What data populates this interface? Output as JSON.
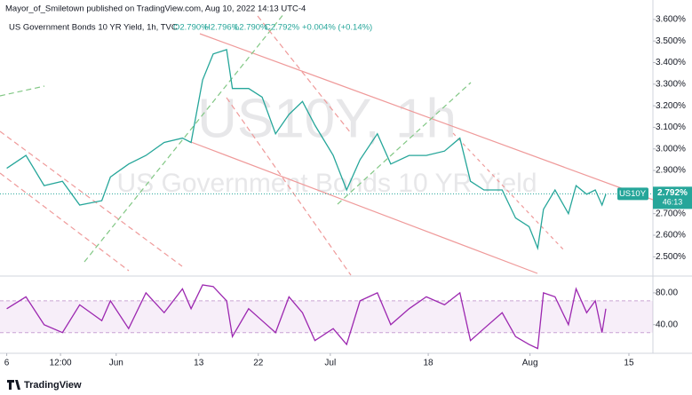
{
  "header": {
    "publisher": "Mayor_of_Smiletown published on TradingView.com, Aug 10, 2022 14:13 UTC-4",
    "symbol": "US Government Bonds 10 YR Yield, 1h, TVC",
    "open": "O2.790%",
    "high": "H2.796%",
    "low": "L2.790%",
    "close": "C2.792%",
    "change": "+0.004% (+0.14%)"
  },
  "watermark": {
    "symbol": "US10Y, 1h",
    "description": "US Government Bonds 10 YR Yield"
  },
  "price_tag": {
    "ticker": "US10Y",
    "countdown": "46:13"
  },
  "footer": {
    "brand": "TradingView"
  },
  "chart_data": [
    {
      "type": "line",
      "color": "#26a69a",
      "x": [
        6.6,
        8.6,
        10.5,
        12.4,
        14.2,
        16.5,
        17.4,
        19.3,
        21.1,
        23.0,
        24.9,
        25.8,
        27.0,
        28.1,
        29.5,
        30.1,
        31.8,
        33.2,
        34.6,
        36.0,
        37.4,
        38.7,
        40.6,
        42.0,
        43.4,
        45.2,
        46.6,
        48.5,
        50.3,
        52.2,
        53.8,
        54.9,
        56.3,
        58.2,
        59.6,
        61.0,
        61.9,
        62.5,
        63.7,
        65.1,
        65.9,
        67.0,
        67.9,
        68.6,
        69.0
      ],
      "values": [
        2.91,
        2.97,
        2.83,
        2.85,
        2.74,
        2.76,
        2.87,
        2.93,
        2.97,
        3.03,
        3.05,
        3.03,
        3.32,
        3.44,
        3.46,
        3.28,
        3.28,
        3.24,
        3.07,
        3.16,
        3.22,
        3.11,
        2.97,
        2.81,
        2.95,
        3.07,
        2.93,
        2.97,
        2.97,
        2.99,
        3.05,
        2.85,
        2.81,
        2.81,
        2.68,
        2.64,
        2.54,
        2.72,
        2.81,
        2.7,
        2.83,
        2.79,
        2.81,
        2.74,
        2.79
      ],
      "last_price": {
        "value": 2.792,
        "label": "2.792%"
      },
      "xlim": [
        5.9,
        73.9
      ],
      "xticks": [
        {
          "value": 6.6,
          "label": "6"
        },
        {
          "value": 12.2,
          "label": "12:00"
        },
        {
          "value": 18,
          "label": "Jun"
        },
        {
          "value": 26.6,
          "label": "13"
        },
        {
          "value": 32.8,
          "label": "22"
        },
        {
          "value": 40.3,
          "label": "Jul"
        },
        {
          "value": 50.5,
          "label": "18"
        },
        {
          "value": 61.1,
          "label": "Aug"
        },
        {
          "value": 71.4,
          "label": "15"
        }
      ],
      "ylim": [
        2.415,
        3.69
      ],
      "yticks": [
        {
          "value": 2.5,
          "label": "2.500%"
        },
        {
          "value": 2.6,
          "label": "2.600%"
        },
        {
          "value": 2.7,
          "label": "2.700%"
        },
        {
          "value": 2.8,
          "label": "2.800%"
        },
        {
          "value": 2.9,
          "label": "2.900%"
        },
        {
          "value": 3.0,
          "label": "3.000%"
        },
        {
          "value": 3.1,
          "label": "3.100%"
        },
        {
          "value": 3.2,
          "label": "3.200%"
        },
        {
          "value": 3.3,
          "label": "3.300%"
        },
        {
          "value": 3.4,
          "label": "3.400%"
        },
        {
          "value": 3.5,
          "label": "3.500%"
        },
        {
          "value": 3.6,
          "label": "3.600%"
        }
      ]
    },
    {
      "type": "line",
      "color": "#9c27b0",
      "x": [
        6.6,
        8.6,
        10.5,
        12.4,
        14.2,
        16.5,
        17.4,
        19.3,
        21.1,
        23.0,
        24.9,
        25.8,
        27.0,
        28.1,
        29.5,
        30.1,
        31.8,
        33.2,
        34.6,
        36.0,
        37.4,
        38.7,
        40.6,
        42.0,
        43.4,
        45.2,
        46.6,
        48.5,
        50.3,
        52.2,
        53.8,
        54.9,
        56.3,
        58.2,
        59.6,
        61.0,
        61.9,
        62.5,
        63.7,
        65.1,
        65.9,
        67.0,
        67.9,
        68.6,
        69.0
      ],
      "values": [
        60,
        75,
        40,
        30,
        65,
        45,
        70,
        35,
        80,
        55,
        85,
        60,
        90,
        88,
        70,
        25,
        60,
        45,
        30,
        75,
        55,
        20,
        35,
        15,
        70,
        80,
        40,
        60,
        75,
        65,
        80,
        20,
        35,
        55,
        25,
        15,
        10,
        80,
        75,
        40,
        85,
        55,
        70,
        30,
        60
      ],
      "band": [
        30,
        70
      ],
      "ylim": [
        4,
        100
      ],
      "yticks": [
        {
          "value": 80,
          "label": "80.00"
        },
        {
          "value": 40,
          "label": "40.00"
        }
      ]
    }
  ]
}
